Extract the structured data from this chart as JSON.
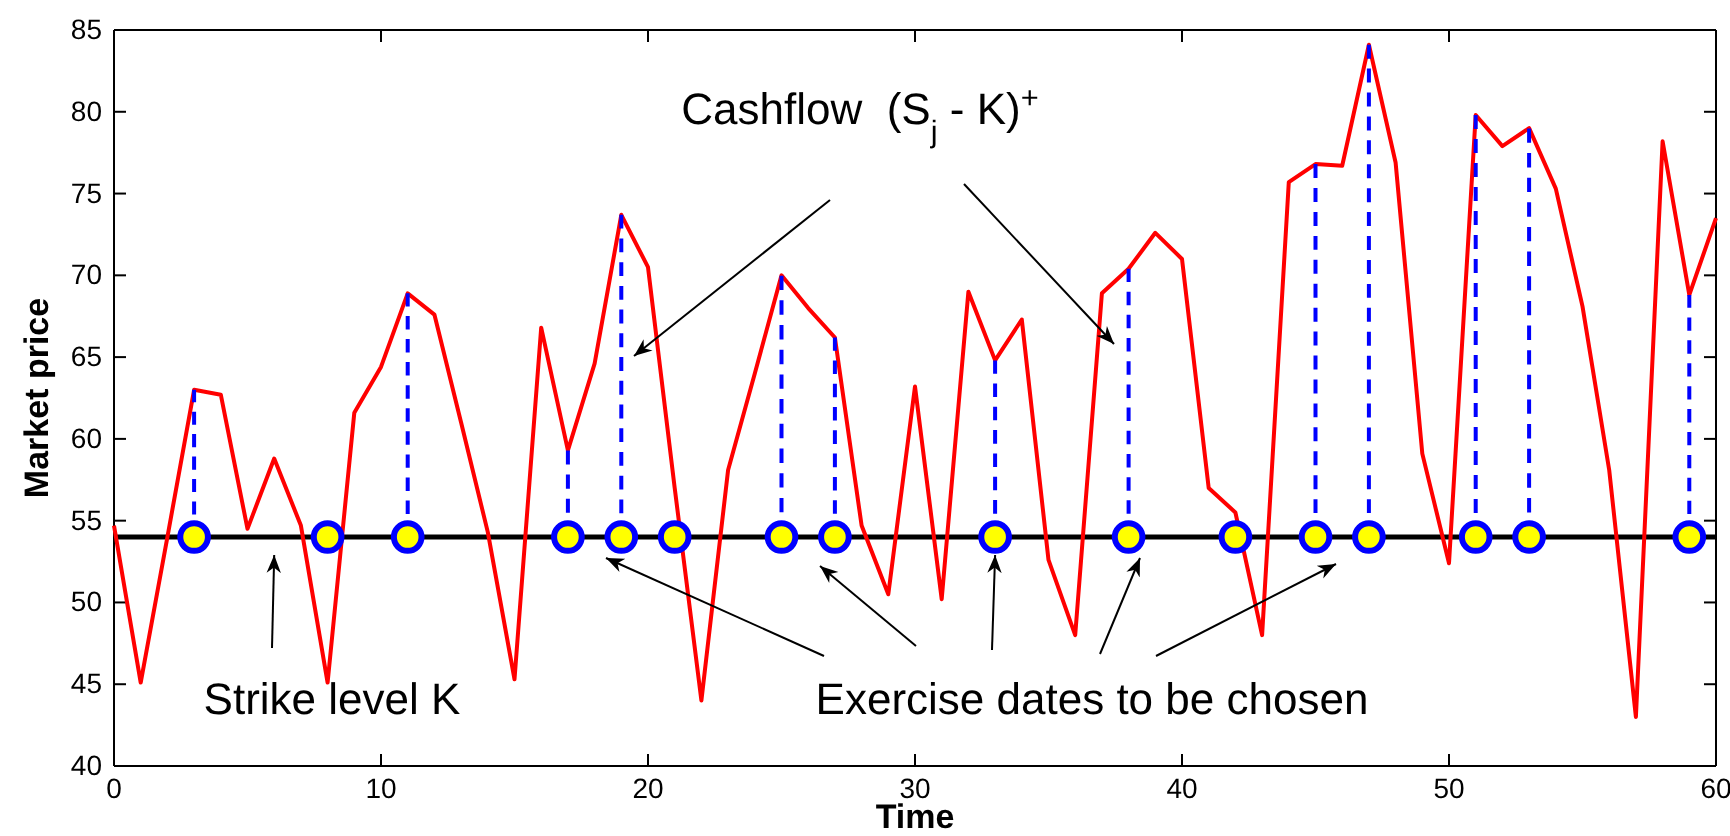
{
  "chart_data": {
    "type": "line",
    "xlabel": "Time",
    "ylabel": "Market price",
    "xlim": [
      0,
      60
    ],
    "xticks": [
      0,
      10,
      20,
      30,
      40,
      50,
      60
    ],
    "ylim": [
      40,
      85
    ],
    "yticks": [
      40,
      45,
      50,
      55,
      60,
      65,
      70,
      75,
      80,
      85
    ],
    "grid": false,
    "annotations": [
      "Cashflow  (S$_{j}$ - K)$^{+}$",
      {
        "text": "Strike level K",
        "x": 6,
        "y": 54
      },
      {
        "text": "Exercise dates to be chosen",
        "x": 33,
        "y": 54
      }
    ],
    "ref_lines": [
      {
        "axis": "y",
        "value": 54,
        "color": "#000000"
      }
    ],
    "series": [
      {
        "color": "#ff0000",
        "x": [
          0,
          1,
          2,
          3,
          4,
          5,
          6,
          7,
          8,
          9,
          10,
          11,
          12,
          13,
          14,
          15,
          16,
          17,
          18,
          19,
          20,
          21,
          22,
          23,
          24,
          25,
          26,
          27,
          28,
          29,
          30,
          31,
          32,
          33,
          34,
          35,
          36,
          37,
          38,
          39,
          40,
          41,
          42,
          43,
          44,
          45,
          46,
          47,
          48,
          49,
          50,
          51,
          52,
          53,
          54,
          55,
          56,
          57,
          58,
          59,
          60
        ],
        "values": [
          54.7,
          45.1,
          54,
          63,
          62.7,
          54.5,
          58.8,
          54.7,
          45.1,
          61.6,
          64.4,
          68.9,
          67.6,
          61,
          54.3,
          45.3,
          66.8,
          59.3,
          64.6,
          73.7,
          70.5,
          57,
          44,
          58.1,
          64,
          70,
          68,
          66.2,
          54.7,
          50.5,
          63.2,
          50.2,
          69,
          64.8,
          67.3,
          52.6,
          48,
          68.9,
          70.4,
          72.6,
          71,
          57,
          55.5,
          48,
          75.7,
          76.8,
          76.7,
          84.1,
          76.9,
          59.1,
          52.4,
          79.8,
          77.9,
          79,
          75.3,
          68.1,
          58.1,
          43,
          78.2,
          68.8,
          73.5
        ]
      },
      {
        "color": "#0000ff",
        "line_style": "dashed",
        "x": [
          3,
          3
        ],
        "values": [
          54,
          63
        ]
      },
      {
        "color": "#0000ff",
        "line_style": "dashed",
        "x": [
          11,
          11
        ],
        "values": [
          54,
          68.9
        ]
      },
      {
        "color": "#0000ff",
        "line_style": "dashed",
        "x": [
          17,
          17
        ],
        "values": [
          54,
          59.3
        ]
      },
      {
        "color": "#0000ff",
        "line_style": "dashed",
        "x": [
          19,
          19
        ],
        "values": [
          54,
          73.7
        ]
      },
      {
        "color": "#0000ff",
        "line_style": "dashed",
        "x": [
          25,
          25
        ],
        "values": [
          54,
          70
        ]
      },
      {
        "color": "#0000ff",
        "line_style": "dashed",
        "x": [
          27,
          27
        ],
        "values": [
          54,
          66.2
        ]
      },
      {
        "color": "#0000ff",
        "line_style": "dashed",
        "x": [
          33,
          33
        ],
        "values": [
          54,
          64.8
        ]
      },
      {
        "color": "#0000ff",
        "line_style": "dashed",
        "x": [
          38,
          38
        ],
        "values": [
          54,
          70.4
        ]
      },
      {
        "color": "#0000ff",
        "line_style": "dashed",
        "x": [
          45,
          45
        ],
        "values": [
          54,
          76.8
        ]
      },
      {
        "color": "#0000ff",
        "line_style": "dashed",
        "x": [
          47,
          47
        ],
        "values": [
          54,
          84.1
        ]
      },
      {
        "color": "#0000ff",
        "line_style": "dashed",
        "x": [
          51,
          51
        ],
        "values": [
          54,
          79.8
        ]
      },
      {
        "color": "#0000ff",
        "line_style": "dashed",
        "x": [
          53,
          53
        ],
        "values": [
          54,
          79
        ]
      },
      {
        "color": "#0000ff",
        "line_style": "dashed",
        "x": [
          59,
          59
        ],
        "values": [
          54,
          68.8
        ]
      },
      {
        "type": "scatter",
        "color": "#ffff00",
        "marker": "circle",
        "x": [
          3,
          8,
          11,
          17,
          19,
          21,
          25,
          27,
          33,
          38,
          42,
          45,
          47,
          51,
          53,
          59
        ],
        "values": [
          54,
          54,
          54,
          54,
          54,
          54,
          54,
          54,
          54,
          54,
          54,
          54,
          54,
          54,
          54,
          54
        ]
      }
    ]
  }
}
